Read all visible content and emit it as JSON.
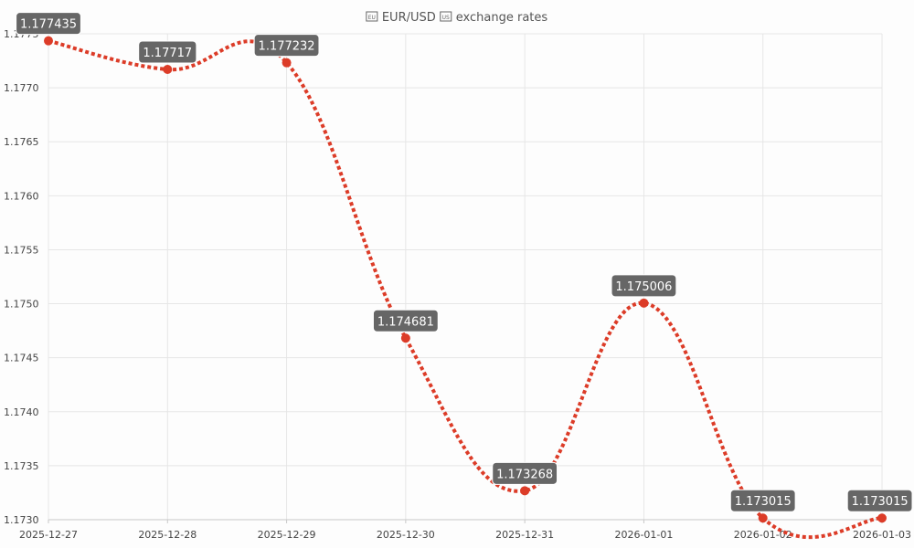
{
  "chart_data": {
    "type": "line",
    "title": "EUR/USD exchange rates",
    "title_prefix_icon": "eu-flag-icon",
    "title_mid_icon": "us-flag-icon",
    "title_parts": [
      "EUR/USD",
      "exchange rates"
    ],
    "x": [
      "2025-12-27",
      "2025-12-28",
      "2025-12-29",
      "2025-12-30",
      "2025-12-31",
      "2026-01-01",
      "2026-01-02",
      "2026-01-03"
    ],
    "series": [
      {
        "values": [
          1.177435,
          1.17717,
          1.177232,
          1.174681,
          1.173268,
          1.175006,
          1.173015,
          1.173015
        ],
        "value_labels": [
          "1.177435",
          "1.17717",
          "1.177232",
          "1.174681",
          "1.173268",
          "1.175006",
          "1.173015",
          "1.173015"
        ],
        "color": "#dc3c28",
        "line_style": "dotted",
        "curve": "smooth"
      }
    ],
    "y_ticks": [
      "1.1730",
      "1.1735",
      "1.1740",
      "1.1745",
      "1.1750",
      "1.1755",
      "1.1760",
      "1.1765",
      "1.1770",
      "1.1775"
    ],
    "ylim": [
      1.173,
      1.1775
    ],
    "xlabel": "",
    "ylabel": "",
    "grid": true,
    "legend": "none",
    "label_box_color": "#666666"
  }
}
